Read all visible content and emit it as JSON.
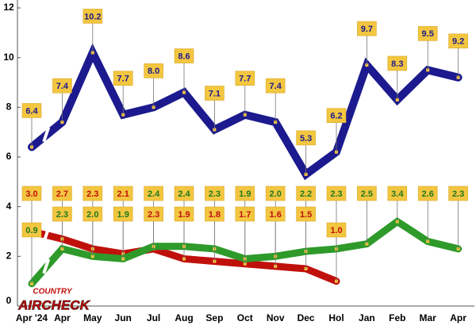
{
  "chart_data": {
    "type": "line",
    "categories": [
      "Apr '24",
      "Apr",
      "May",
      "Jun",
      "Jul",
      "Aug",
      "Sep",
      "Oct",
      "Nov",
      "Dec",
      "Hol",
      "Jan",
      "Feb",
      "Mar",
      "Apr"
    ],
    "series": [
      {
        "color": "#1c1a8e",
        "label_color": "#1c1a8e",
        "values": [
          6.4,
          7.4,
          10.2,
          7.7,
          8.0,
          8.6,
          7.1,
          7.7,
          7.4,
          5.3,
          6.2,
          9.7,
          8.3,
          9.5,
          9.2
        ],
        "value_labels": [
          "6.4",
          "7.4",
          "10.2",
          "7.7",
          "8.0",
          "8.6",
          "7.1",
          "7.7",
          "7.4",
          "5.3",
          "6.2",
          "9.7",
          "8.3",
          "9.5",
          "9.2"
        ]
      },
      {
        "color": "#c0100c",
        "label_color": "#c0100c",
        "values": [
          3.0,
          2.7,
          2.3,
          2.1,
          2.3,
          1.9,
          1.8,
          1.7,
          1.6,
          1.5,
          1.0,
          null,
          null,
          null,
          null
        ],
        "value_labels": [
          "3.0",
          "2.7",
          "2.3",
          "2.1",
          "2.3",
          "1.9",
          "1.8",
          "1.7",
          "1.6",
          "1.5",
          "1.0",
          null,
          null,
          null,
          null
        ]
      },
      {
        "color": "#2e9a2a",
        "label_color": "#1f7a1c",
        "values": [
          0.9,
          2.3,
          2.0,
          1.9,
          2.4,
          2.4,
          2.3,
          1.9,
          2.0,
          2.2,
          2.3,
          2.5,
          3.4,
          2.6,
          2.3
        ],
        "value_labels": [
          "0.9",
          "2.3",
          "2.0",
          "1.9",
          "2.4",
          "2.4",
          "2.3",
          "1.9",
          "2.0",
          "2.2",
          "2.3",
          "2.5",
          "3.4",
          "2.6",
          "2.3"
        ]
      }
    ],
    "ylim": [
      0,
      12
    ],
    "yticks": [
      0,
      2,
      4,
      6,
      8,
      10,
      12
    ],
    "logo": {
      "top": "COUNTRY",
      "bottom": "AIRCHECK"
    }
  }
}
